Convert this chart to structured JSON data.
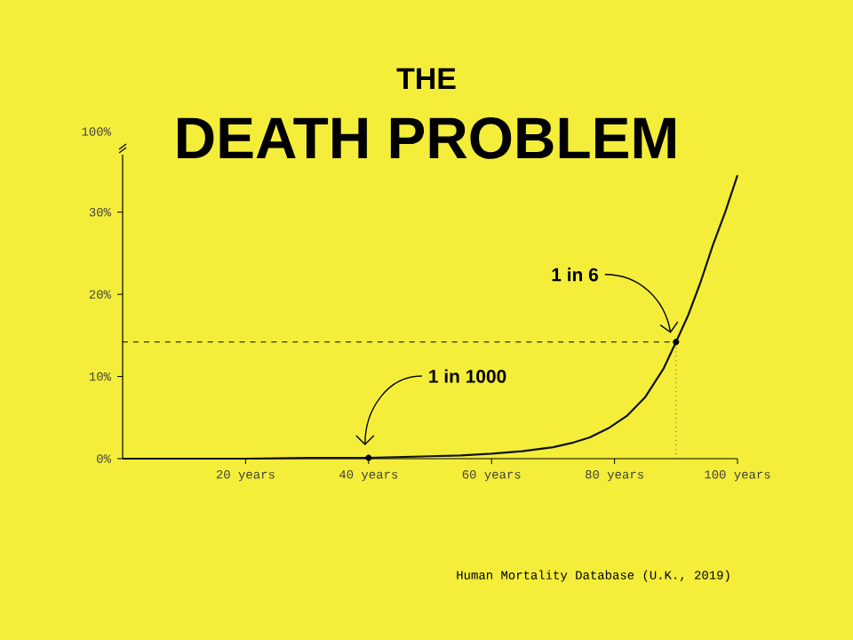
{
  "chart_data": {
    "type": "line",
    "title": "THE",
    "subtitle": "DEATH PROBLEM",
    "x": [
      0,
      10,
      20,
      30,
      40,
      45,
      50,
      55,
      60,
      65,
      70,
      73,
      76,
      79,
      82,
      85,
      88,
      90,
      92,
      94,
      96,
      98,
      100
    ],
    "series": [
      {
        "color": "#111111",
        "values": [
          0,
          0,
          0,
          0.1,
          0.1,
          0.2,
          0.3,
          0.4,
          0.6,
          0.9,
          1.4,
          1.9,
          2.6,
          3.7,
          5.2,
          7.5,
          11,
          14.2,
          17.5,
          21.5,
          26,
          30,
          34.5
        ]
      }
    ],
    "xlim": [
      0,
      100
    ],
    "ylim": [
      0,
      37
    ],
    "xticks": [
      {
        "value": 20,
        "label": "20 years"
      },
      {
        "value": 40,
        "label": "40 years"
      },
      {
        "value": 60,
        "label": "60 years"
      },
      {
        "value": 80,
        "label": "80 years"
      },
      {
        "value": 100,
        "label": "100 years"
      }
    ],
    "yticks": [
      {
        "value": 0,
        "label": "0%"
      },
      {
        "value": 10,
        "label": "10%"
      },
      {
        "value": 20,
        "label": "20%"
      },
      {
        "value": 30,
        "label": "30%"
      }
    ],
    "ref_lines": [
      {
        "axis": "y",
        "value": 14.2,
        "line_style": "dashed"
      },
      {
        "axis": "x",
        "value": 90,
        "line_style": "dotted"
      }
    ],
    "annotations": [
      {
        "text": "1 in 6",
        "x": 90,
        "y": 14.2
      },
      {
        "text": "1 in 1000",
        "x": 40,
        "y": 0.1
      },
      "100%",
      "Human Mortality Database (U.K., 2019)"
    ],
    "marker": "none",
    "line_style": "solid"
  }
}
